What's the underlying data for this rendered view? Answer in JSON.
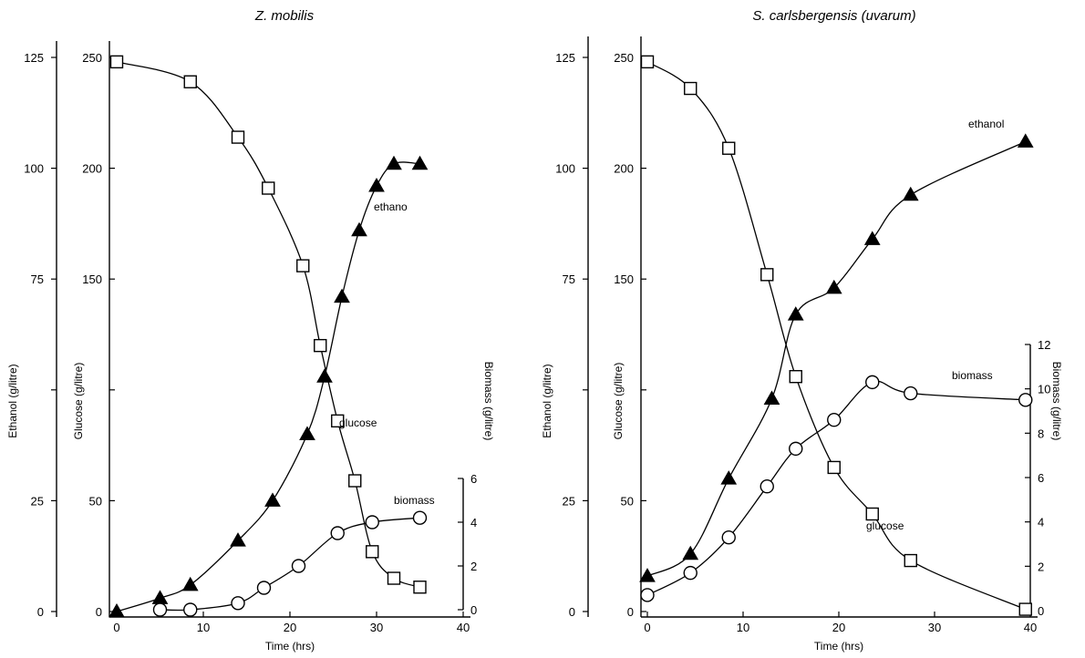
{
  "chart_data": [
    {
      "type": "line",
      "title": "Z. mobilis",
      "xlabel": "Time (hrs)",
      "xlim": [
        0,
        40
      ],
      "xticks": [
        0,
        10,
        20,
        30,
        40
      ],
      "axes": {
        "ethanol": {
          "label": "Ethanol (g/litre)",
          "range": [
            0,
            125
          ],
          "ticks": [
            0,
            25,
            75,
            100,
            125
          ]
        },
        "glucose": {
          "label": "Glucose (g/litre)",
          "range": [
            0,
            250
          ],
          "ticks": [
            0,
            50,
            150,
            200,
            250
          ]
        },
        "biomass": {
          "label": "Biomass (g/litre)",
          "range": [
            0,
            6
          ],
          "ticks": [
            0,
            2,
            4,
            6
          ]
        }
      },
      "series": [
        {
          "name": "glucose",
          "axis": "glucose",
          "marker": "square",
          "x": [
            0,
            8.5,
            14,
            17.5,
            21.5,
            23.5,
            25.5,
            27.5,
            29.5,
            32,
            35
          ],
          "y": [
            248,
            239,
            214,
            191,
            156,
            120,
            86,
            59,
            27,
            15,
            11
          ]
        },
        {
          "name": "ethano",
          "axis": "ethanol",
          "marker": "triangle",
          "x": [
            0,
            5,
            8.5,
            14,
            18,
            22,
            24,
            26,
            28,
            30,
            32,
            35
          ],
          "y": [
            0,
            3,
            6,
            16,
            25,
            40,
            53,
            71,
            86,
            96,
            101,
            101
          ]
        },
        {
          "name": "biomass",
          "axis": "biomass",
          "marker": "circle",
          "x": [
            5,
            8.5,
            14,
            17,
            21,
            25.5,
            29.5,
            35
          ],
          "y": [
            0,
            0,
            0.3,
            1.0,
            2.0,
            3.5,
            4.0,
            4.2
          ]
        }
      ]
    },
    {
      "type": "line",
      "title": "S. carlsbergensis (uvarum)",
      "xlabel": "Time (hrs)",
      "xlim": [
        0,
        40
      ],
      "xticks": [
        0,
        10,
        20,
        30,
        40
      ],
      "axes": {
        "ethanol": {
          "label": "Ethanol (g/litre)",
          "range": [
            0,
            125
          ],
          "ticks": [
            0,
            25,
            75,
            100,
            125
          ]
        },
        "glucose": {
          "label": "Glucose (g/litre)",
          "range": [
            0,
            250
          ],
          "ticks": [
            0,
            50,
            150,
            200,
            250
          ]
        },
        "biomass": {
          "label": "Biomass (g/litre)",
          "range": [
            0,
            12
          ],
          "ticks": [
            0,
            2,
            4,
            6,
            8,
            10,
            12
          ]
        }
      },
      "series": [
        {
          "name": "glucose",
          "axis": "glucose",
          "marker": "square",
          "x": [
            0,
            4.5,
            8.5,
            12.5,
            15.5,
            19.5,
            23.5,
            27.5,
            39.5
          ],
          "y": [
            248,
            236,
            209,
            152,
            106,
            65,
            44,
            23,
            1
          ]
        },
        {
          "name": "ethanol",
          "axis": "ethanol",
          "marker": "triangle",
          "x": [
            0,
            4.5,
            8.5,
            13,
            15.5,
            19.5,
            23.5,
            27.5,
            39.5
          ],
          "y": [
            8,
            13,
            30,
            48,
            67,
            73,
            84,
            94,
            106
          ]
        },
        {
          "name": "biomass",
          "axis": "biomass",
          "marker": "circle",
          "x": [
            0,
            4.5,
            8.5,
            12.5,
            15.5,
            19.5,
            23.5,
            27.5,
            39.5
          ],
          "y": [
            0.7,
            1.7,
            3.3,
            5.6,
            7.3,
            8.6,
            10.3,
            9.8,
            9.5
          ]
        }
      ]
    }
  ]
}
